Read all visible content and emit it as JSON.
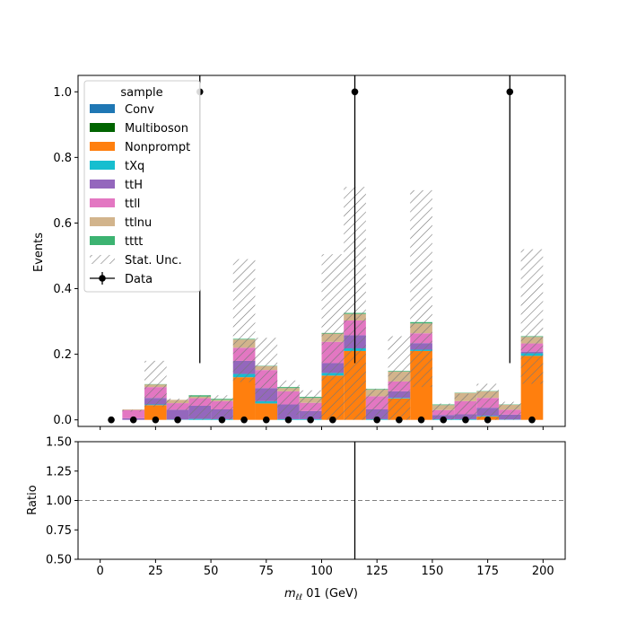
{
  "chart_data": [
    {
      "type": "bar",
      "stacked": true,
      "xlabel": "$m_{\\ell\\ell}$ 01 (GeV)",
      "xlabel_main": "m",
      "xlabel_sub": "ℓℓ",
      "xlabel_rest": " 01 (GeV)",
      "ylabel": "Events",
      "xlim": [
        -10,
        210
      ],
      "ylim": [
        -0.02,
        1.05
      ],
      "xticks": [
        "0",
        "25",
        "50",
        "75",
        "100",
        "125",
        "150",
        "175",
        "200"
      ],
      "yticks": [
        "0.0",
        "0.2",
        "0.4",
        "0.6",
        "0.8",
        "1.0"
      ],
      "legend_title": "sample",
      "legend_location": "upper-left",
      "bin_edges": [
        10,
        20,
        30,
        40,
        50,
        60,
        70,
        80,
        90,
        100,
        110,
        120,
        130,
        140,
        150,
        160,
        170,
        180,
        190,
        200
      ],
      "series": [
        {
          "name": "Conv",
          "color": "#1f77b4",
          "values": [
            0,
            0,
            0,
            0,
            0,
            0,
            0,
            0,
            0,
            0,
            0,
            0,
            0,
            0,
            0,
            0,
            0,
            0,
            0
          ]
        },
        {
          "name": "Multiboson",
          "color": "#006400",
          "values": [
            0,
            0,
            0,
            0,
            0,
            0,
            0,
            0,
            0,
            0,
            0,
            0,
            0,
            0,
            0,
            0,
            0,
            0,
            0
          ]
        },
        {
          "name": "Nonprompt",
          "color": "#ff7f0e",
          "values": [
            0,
            0.045,
            0,
            0,
            0,
            0.13,
            0.05,
            0,
            0,
            0.135,
            0.21,
            0,
            0.065,
            0.21,
            0,
            0,
            0.01,
            0,
            0.195
          ]
        },
        {
          "name": "tXq",
          "color": "#17becf",
          "values": [
            0,
            0.002,
            0.001,
            0.003,
            0.002,
            0.01,
            0.007,
            0.002,
            0.002,
            0.008,
            0.008,
            0.002,
            0.002,
            0.004,
            0.002,
            0.002,
            0.002,
            0.001,
            0.008
          ]
        },
        {
          "name": "ttH",
          "color": "#9467bd",
          "values": [
            0.005,
            0.02,
            0.03,
            0.04,
            0.03,
            0.04,
            0.04,
            0.045,
            0.025,
            0.03,
            0.04,
            0.03,
            0.02,
            0.02,
            0.013,
            0.015,
            0.025,
            0.015,
            0.005
          ]
        },
        {
          "name": "ttll",
          "color": "#e377c2",
          "values": [
            0.025,
            0.033,
            0.02,
            0.023,
            0.025,
            0.04,
            0.055,
            0.04,
            0.025,
            0.065,
            0.045,
            0.04,
            0.03,
            0.03,
            0.015,
            0.04,
            0.03,
            0.015,
            0.025
          ]
        },
        {
          "name": "ttlnu",
          "color": "#d2b48c",
          "values": [
            0.002,
            0.008,
            0.01,
            0.005,
            0.004,
            0.025,
            0.012,
            0.01,
            0.015,
            0.025,
            0.02,
            0.02,
            0.03,
            0.03,
            0.015,
            0.025,
            0.02,
            0.015,
            0.02
          ]
        },
        {
          "name": "tttt",
          "color": "#3cb371",
          "values": [
            0,
            0.001,
            0,
            0.004,
            0.003,
            0.002,
            0.001,
            0.003,
            0.003,
            0.002,
            0.003,
            0.002,
            0.002,
            0.004,
            0.002,
            0.001,
            0.001,
            0.001,
            0.002
          ]
        }
      ],
      "stat_unc": {
        "name": "Stat. Unc.",
        "low": [
          0.025,
          0.04,
          0.03,
          0.0,
          0.0,
          0.115,
          0.055,
          0.015,
          0.005,
          0.0,
          0.0,
          0.0,
          0.0,
          0.1,
          0.0,
          0.0,
          0.0,
          0.0,
          0.11
        ],
        "high": [
          0.03,
          0.18,
          0.065,
          0.075,
          0.075,
          0.49,
          0.25,
          0.12,
          0.09,
          0.505,
          0.71,
          0.095,
          0.255,
          0.7,
          0.05,
          0.08,
          0.11,
          0.055,
          0.52
        ]
      },
      "data": {
        "name": "Data",
        "x": [
          5,
          15,
          25,
          35,
          45,
          55,
          65,
          75,
          85,
          95,
          105,
          115,
          125,
          135,
          145,
          155,
          165,
          175,
          185,
          195
        ],
        "y": [
          0,
          0,
          0,
          0,
          1,
          0,
          0,
          0,
          0,
          0,
          0,
          1,
          0,
          0,
          0,
          0,
          0,
          0,
          1,
          0
        ],
        "err_low": [
          0,
          0,
          0,
          0,
          0.827,
          0,
          0,
          0,
          0,
          0,
          0,
          0.827,
          0,
          0,
          0,
          0,
          0,
          0,
          0.827,
          0
        ],
        "err_high": [
          0,
          0,
          0,
          0,
          2.3,
          0,
          0,
          0,
          0,
          0,
          0,
          2.3,
          0,
          0,
          0,
          0,
          0,
          0,
          2.3,
          0
        ]
      }
    },
    {
      "type": "scatter",
      "ylabel": "Ratio",
      "xlim": [
        -10,
        210
      ],
      "ylim": [
        0.5,
        1.5
      ],
      "xticks": [
        "0",
        "25",
        "50",
        "75",
        "100",
        "125",
        "150",
        "175",
        "200"
      ],
      "yticks": [
        "0.50",
        "0.75",
        "1.00",
        "1.25",
        "1.50"
      ],
      "reference_line": 1.0,
      "ratio_errorbars": [
        {
          "x": 115,
          "low": -0.5,
          "high": 3.0
        }
      ]
    }
  ]
}
